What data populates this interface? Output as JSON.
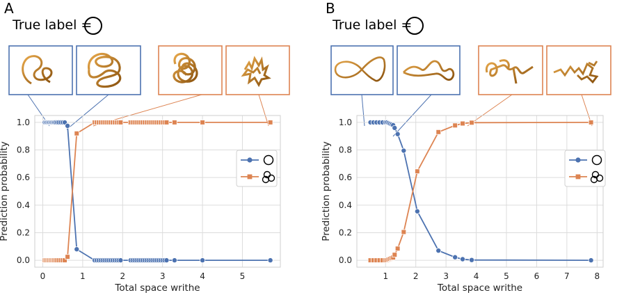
{
  "panels": [
    {
      "letter": "A",
      "true_label_text": "True label =",
      "true_label_icon": "unknot-icon"
    },
    {
      "letter": "B",
      "true_label_text": "True label =",
      "true_label_icon": "unknot-icon"
    }
  ],
  "colors": {
    "unknot_series": "#4c72b0",
    "knot_series": "#dd8452",
    "unknot_box": "#4c72b0",
    "knot_box": "#dd8452",
    "grid": "#dcdcdc",
    "tube": "#c8821f"
  },
  "legend_icons": [
    "unknot-icon",
    "trefoil-icon"
  ],
  "chart_data": [
    {
      "type": "line",
      "panel": "A",
      "xlabel": "Total space writhe",
      "ylabel": "Prediction probability",
      "xlim": [
        -0.2,
        5.95
      ],
      "ylim": [
        -0.05,
        1.05
      ],
      "xticks": [
        0,
        1,
        2,
        3,
        4,
        5
      ],
      "yticks": [
        0.0,
        0.2,
        0.4,
        0.6,
        0.8,
        1.0
      ],
      "ytick_labels": [
        "0.0",
        "0.2",
        "0.4",
        "0.6",
        "0.8",
        "1.0"
      ],
      "grid": true,
      "legend_position": "right",
      "series": [
        {
          "marker": "circle",
          "x": [
            0.05,
            0.08,
            0.11,
            0.14,
            0.17,
            0.2,
            0.23,
            0.26,
            0.29,
            0.32,
            0.36,
            0.4,
            0.45,
            0.5,
            0.55,
            0.62,
            0.85,
            1.3,
            1.35,
            1.4,
            1.45,
            1.5,
            1.55,
            1.6,
            1.65,
            1.7,
            1.75,
            1.8,
            1.85,
            1.9,
            1.95,
            2.2,
            2.25,
            2.3,
            2.35,
            2.4,
            2.45,
            2.5,
            2.55,
            2.6,
            2.65,
            2.7,
            2.75,
            2.8,
            2.85,
            2.9,
            2.95,
            3.0,
            3.05,
            3.1,
            3.3,
            4.0,
            5.7
          ],
          "y": [
            1,
            1,
            1,
            1,
            1,
            1,
            1,
            1,
            1,
            1,
            1,
            1,
            1,
            1,
            1,
            0.975,
            0.08,
            0,
            0,
            0,
            0,
            0,
            0,
            0,
            0,
            0,
            0,
            0,
            0,
            0,
            0,
            0,
            0,
            0,
            0,
            0,
            0,
            0,
            0,
            0,
            0,
            0,
            0,
            0,
            0,
            0,
            0,
            0,
            0,
            0,
            0,
            0,
            0
          ]
        },
        {
          "marker": "square",
          "x": [
            0.05,
            0.08,
            0.11,
            0.14,
            0.17,
            0.2,
            0.23,
            0.26,
            0.29,
            0.32,
            0.36,
            0.4,
            0.45,
            0.5,
            0.55,
            0.62,
            0.85,
            1.3,
            1.35,
            1.4,
            1.45,
            1.5,
            1.55,
            1.6,
            1.65,
            1.7,
            1.75,
            1.8,
            1.85,
            1.9,
            1.95,
            2.2,
            2.25,
            2.3,
            2.35,
            2.4,
            2.45,
            2.5,
            2.55,
            2.6,
            2.65,
            2.7,
            2.75,
            2.8,
            2.85,
            2.9,
            2.95,
            3.0,
            3.05,
            3.1,
            3.3,
            4.0,
            5.7
          ],
          "y": [
            0,
            0,
            0,
            0,
            0,
            0,
            0,
            0,
            0,
            0,
            0,
            0,
            0,
            0,
            0,
            0.025,
            0.92,
            1,
            1,
            1,
            1,
            1,
            1,
            1,
            1,
            1,
            1,
            1,
            1,
            1,
            1,
            1,
            1,
            1,
            1,
            1,
            1,
            1,
            1,
            1,
            1,
            1,
            1,
            1,
            1,
            1,
            1,
            1,
            1,
            1,
            1,
            1,
            1
          ]
        }
      ]
    },
    {
      "type": "line",
      "panel": "B",
      "xlabel": "Total space writhe",
      "ylabel": "Prediction probability",
      "xlim": [
        0.05,
        8.2
      ],
      "ylim": [
        -0.05,
        1.05
      ],
      "xticks": [
        1,
        2,
        3,
        4,
        5,
        6,
        7,
        8
      ],
      "yticks": [
        0.0,
        0.2,
        0.4,
        0.6,
        0.8,
        1.0
      ],
      "ytick_labels": [
        "0.0",
        "0.2",
        "0.4",
        "0.6",
        "0.8",
        "1.0"
      ],
      "grid": true,
      "legend_position": "right",
      "series": [
        {
          "marker": "circle",
          "x": [
            0.5,
            0.6,
            0.7,
            0.8,
            0.9,
            1.0,
            1.05,
            1.1,
            1.15,
            1.2,
            1.25,
            1.3,
            1.4,
            1.6,
            2.05,
            2.75,
            3.3,
            3.55,
            3.85,
            7.8
          ],
          "y": [
            1,
            1,
            1,
            1,
            1,
            1,
            1,
            0.995,
            0.99,
            0.985,
            0.98,
            0.96,
            0.915,
            0.795,
            0.355,
            0.07,
            0.022,
            0.008,
            0.002,
            0
          ]
        },
        {
          "marker": "square",
          "x": [
            0.5,
            0.6,
            0.7,
            0.8,
            0.9,
            1.0,
            1.05,
            1.1,
            1.15,
            1.2,
            1.25,
            1.3,
            1.4,
            1.6,
            2.05,
            2.75,
            3.3,
            3.55,
            3.85,
            7.8
          ],
          "y": [
            0,
            0,
            0,
            0,
            0,
            0,
            0,
            0.005,
            0.01,
            0.015,
            0.02,
            0.04,
            0.085,
            0.205,
            0.645,
            0.93,
            0.978,
            0.992,
            0.998,
            1
          ]
        }
      ]
    }
  ]
}
